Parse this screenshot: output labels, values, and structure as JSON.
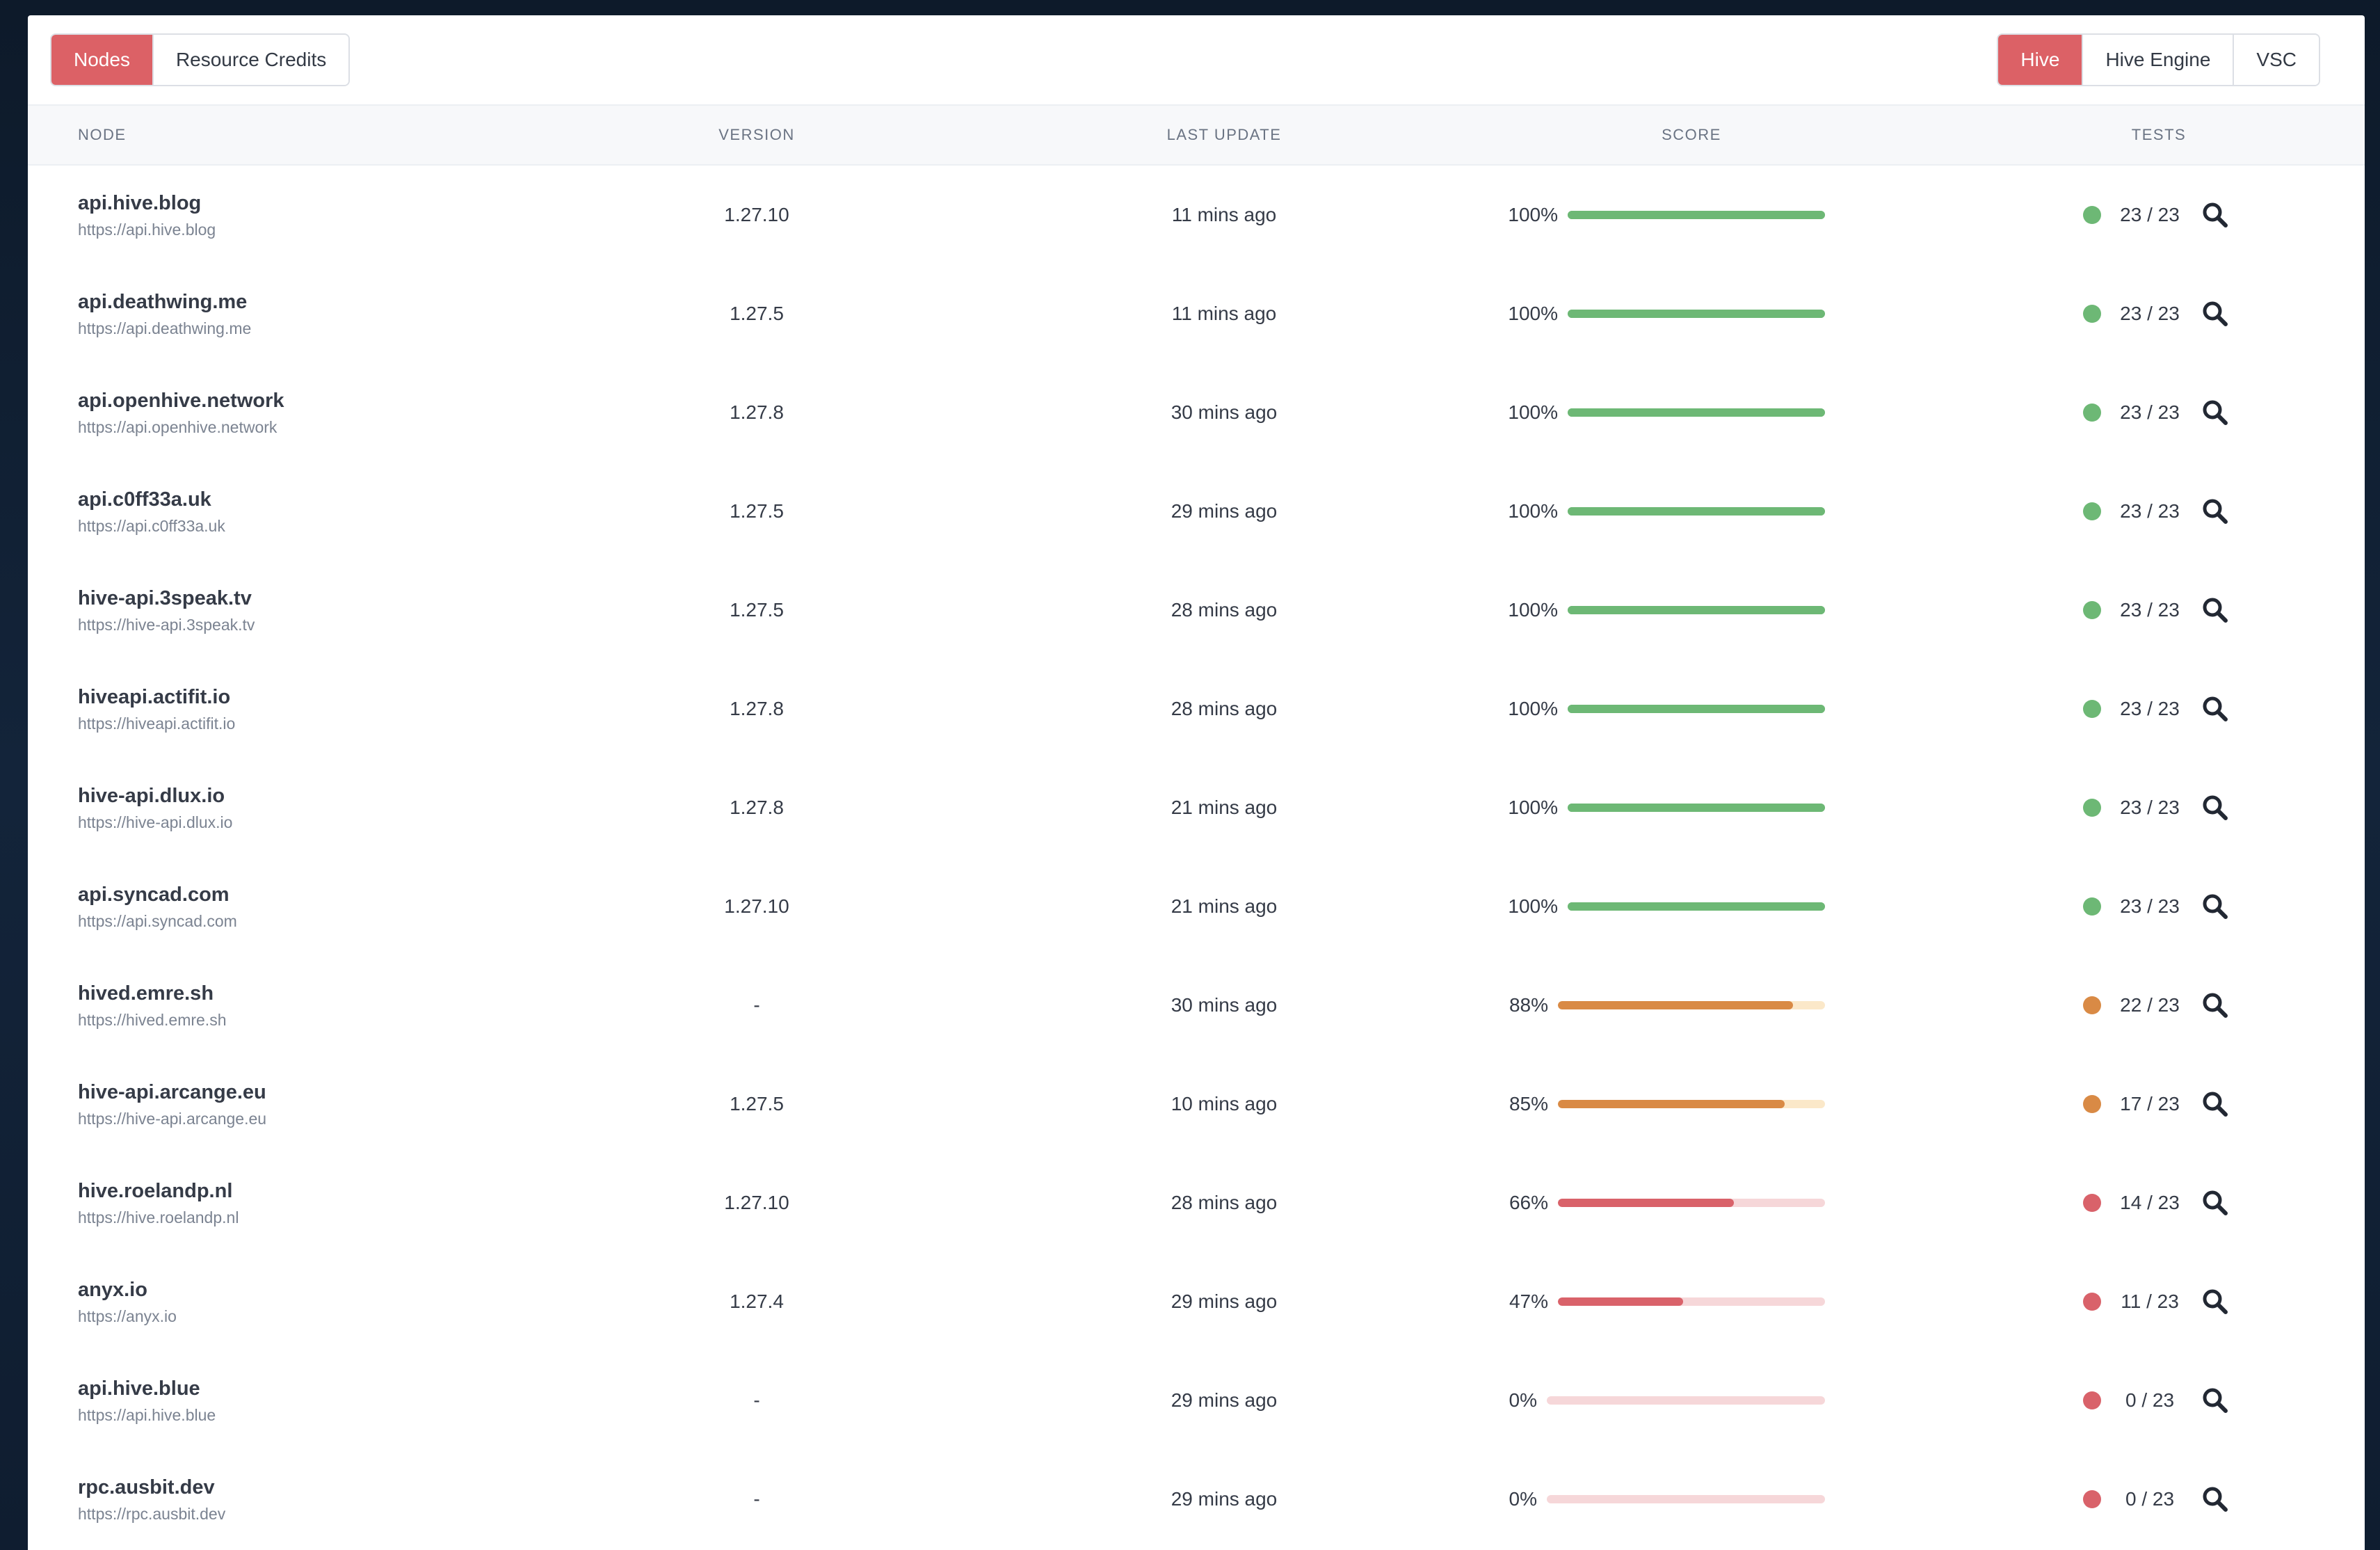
{
  "colors": {
    "green": "#6db875",
    "green_track": "#e5f3e7",
    "orange": "#d98a45",
    "orange_track": "#fbe8c9",
    "red": "#d9626a",
    "red_track": "#f6d7d9",
    "accent": "#dc6166"
  },
  "left_tabs": [
    {
      "label": "Nodes",
      "active": true
    },
    {
      "label": "Resource Credits",
      "active": false
    }
  ],
  "right_tabs": [
    {
      "label": "Hive",
      "active": true
    },
    {
      "label": "Hive Engine",
      "active": false
    },
    {
      "label": "VSC",
      "active": false
    }
  ],
  "columns": {
    "node": "NODE",
    "version": "VERSION",
    "last_update": "LAST UPDATE",
    "score": "SCORE",
    "tests": "TESTS"
  },
  "rows": [
    {
      "name": "api.hive.blog",
      "url": "https://api.hive.blog",
      "version": "1.27.10",
      "updated": "11 mins ago",
      "score_label": "100%",
      "score": 100,
      "tests": "23 / 23",
      "status": "green"
    },
    {
      "name": "api.deathwing.me",
      "url": "https://api.deathwing.me",
      "version": "1.27.5",
      "updated": "11 mins ago",
      "score_label": "100%",
      "score": 100,
      "tests": "23 / 23",
      "status": "green"
    },
    {
      "name": "api.openhive.network",
      "url": "https://api.openhive.network",
      "version": "1.27.8",
      "updated": "30 mins ago",
      "score_label": "100%",
      "score": 100,
      "tests": "23 / 23",
      "status": "green"
    },
    {
      "name": "api.c0ff33a.uk",
      "url": "https://api.c0ff33a.uk",
      "version": "1.27.5",
      "updated": "29 mins ago",
      "score_label": "100%",
      "score": 100,
      "tests": "23 / 23",
      "status": "green"
    },
    {
      "name": "hive-api.3speak.tv",
      "url": "https://hive-api.3speak.tv",
      "version": "1.27.5",
      "updated": "28 mins ago",
      "score_label": "100%",
      "score": 100,
      "tests": "23 / 23",
      "status": "green"
    },
    {
      "name": "hiveapi.actifit.io",
      "url": "https://hiveapi.actifit.io",
      "version": "1.27.8",
      "updated": "28 mins ago",
      "score_label": "100%",
      "score": 100,
      "tests": "23 / 23",
      "status": "green"
    },
    {
      "name": "hive-api.dlux.io",
      "url": "https://hive-api.dlux.io",
      "version": "1.27.8",
      "updated": "21 mins ago",
      "score_label": "100%",
      "score": 100,
      "tests": "23 / 23",
      "status": "green"
    },
    {
      "name": "api.syncad.com",
      "url": "https://api.syncad.com",
      "version": "1.27.10",
      "updated": "21 mins ago",
      "score_label": "100%",
      "score": 100,
      "tests": "23 / 23",
      "status": "green"
    },
    {
      "name": "hived.emre.sh",
      "url": "https://hived.emre.sh",
      "version": "-",
      "updated": "30 mins ago",
      "score_label": "88%",
      "score": 88,
      "tests": "22 / 23",
      "status": "orange"
    },
    {
      "name": "hive-api.arcange.eu",
      "url": "https://hive-api.arcange.eu",
      "version": "1.27.5",
      "updated": "10 mins ago",
      "score_label": "85%",
      "score": 85,
      "tests": "17 / 23",
      "status": "orange"
    },
    {
      "name": "hive.roelandp.nl",
      "url": "https://hive.roelandp.nl",
      "version": "1.27.10",
      "updated": "28 mins ago",
      "score_label": "66%",
      "score": 66,
      "tests": "14 / 23",
      "status": "red"
    },
    {
      "name": "anyx.io",
      "url": "https://anyx.io",
      "version": "1.27.4",
      "updated": "29 mins ago",
      "score_label": "47%",
      "score": 47,
      "tests": "11 / 23",
      "status": "red"
    },
    {
      "name": "api.hive.blue",
      "url": "https://api.hive.blue",
      "version": "-",
      "updated": "29 mins ago",
      "score_label": "0%",
      "score": 0,
      "tests": "0 / 23",
      "status": "red"
    },
    {
      "name": "rpc.ausbit.dev",
      "url": "https://rpc.ausbit.dev",
      "version": "-",
      "updated": "29 mins ago",
      "score_label": "0%",
      "score": 0,
      "tests": "0 / 23",
      "status": "red"
    }
  ]
}
